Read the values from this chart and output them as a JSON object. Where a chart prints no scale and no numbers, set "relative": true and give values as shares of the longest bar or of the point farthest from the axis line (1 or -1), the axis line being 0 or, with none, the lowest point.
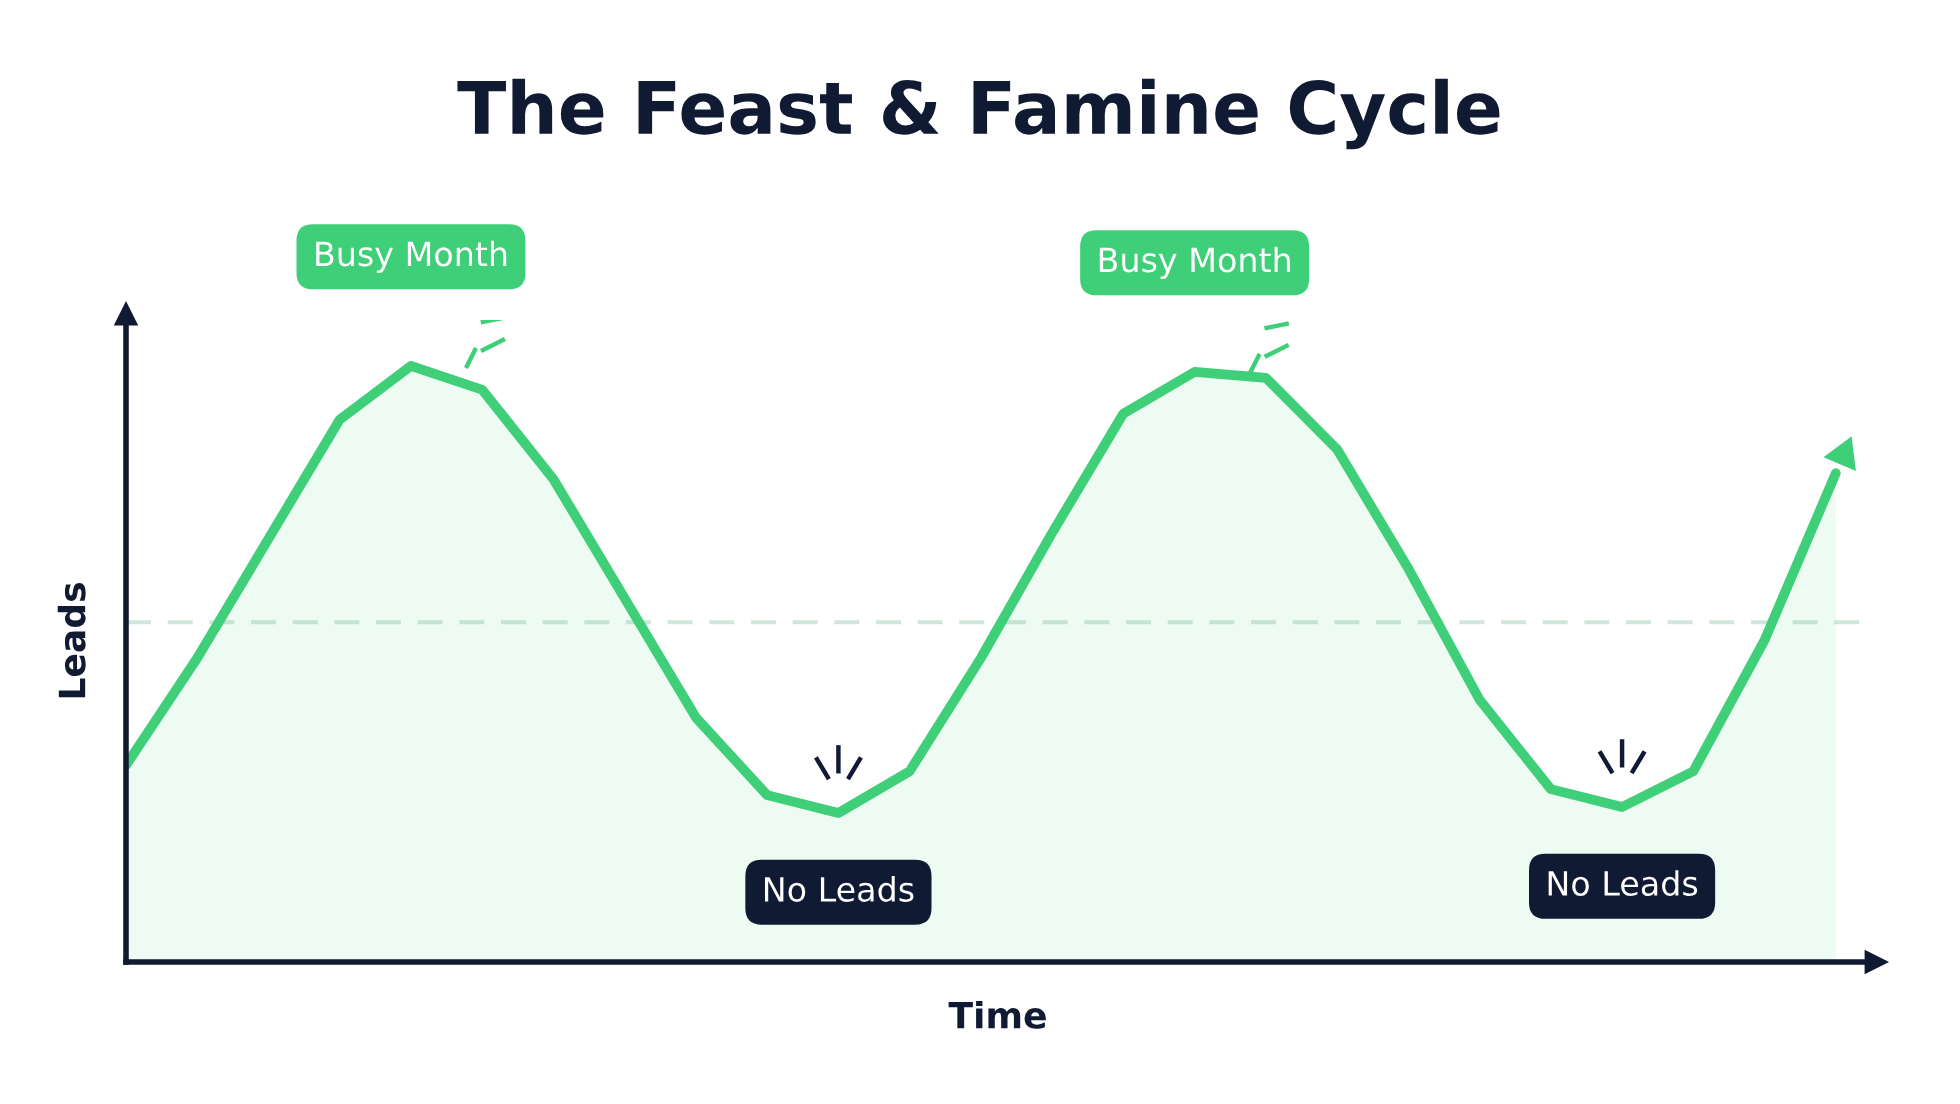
{
  "chart_data": {
    "type": "area",
    "title": "The Feast & Famine Cycle",
    "xlabel": "Time",
    "ylabel": "Leads",
    "relative": true,
    "categories": [
      null,
      null,
      null,
      null,
      null,
      null,
      null,
      null,
      null,
      null,
      null,
      null,
      null,
      null,
      null,
      null,
      null,
      null,
      null,
      null,
      null,
      null,
      null,
      null,
      null
    ],
    "series": [
      {
        "color": "#3ecf78",
        "values": [
          0.33,
          0.51,
          0.71,
          0.91,
          1.0,
          0.96,
          0.81,
          0.61,
          0.41,
          0.28,
          0.25,
          0.32,
          0.51,
          0.72,
          0.92,
          0.99,
          0.98,
          0.86,
          0.66,
          0.44,
          0.29,
          0.26,
          0.32,
          0.54,
          0.82
        ]
      }
    ],
    "ref_lines": [
      {
        "axis": "y",
        "value": 0.57,
        "color": "#cfe6da",
        "line_style": "dashed"
      }
    ],
    "annotations": [
      "Busy Month",
      "No Leads",
      "Busy Month",
      "No Leads"
    ],
    "legend": false,
    "tick_labels": false
  }
}
